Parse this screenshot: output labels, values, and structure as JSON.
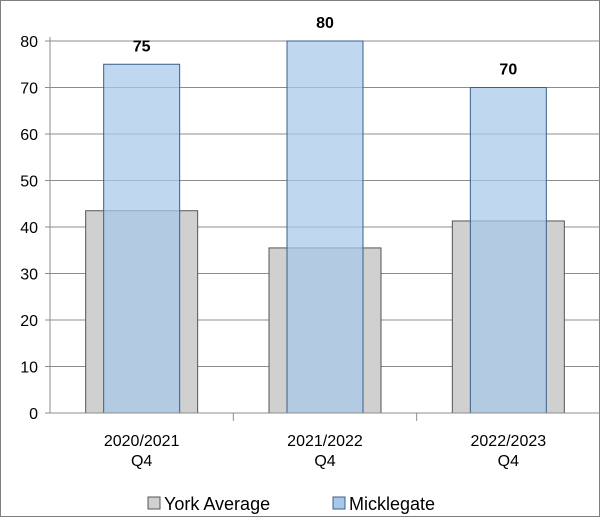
{
  "chart_data": {
    "type": "bar",
    "categories": [
      [
        "2020/2021",
        "Q4"
      ],
      [
        "2021/2022",
        "Q4"
      ],
      [
        "2022/2023",
        "Q4"
      ]
    ],
    "series": [
      {
        "name": "York Average",
        "values": [
          43.5,
          35.5,
          41.3
        ],
        "color": "#d0d0d0",
        "data_labels": []
      },
      {
        "name": "Micklegate",
        "values": [
          75,
          80,
          70
        ],
        "color": "#a8c8ea",
        "data_labels": [
          "75",
          "80",
          "70"
        ]
      }
    ],
    "ylim": [
      0,
      80
    ],
    "yticks": [
      "0",
      "10",
      "20",
      "30",
      "40",
      "50",
      "60",
      "70",
      "80"
    ],
    "grid": true,
    "legend_position": "bottom",
    "title": "",
    "xlabel": "",
    "ylabel": ""
  }
}
